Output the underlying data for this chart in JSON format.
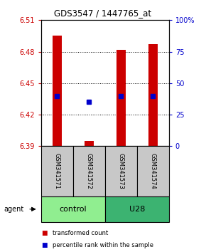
{
  "title": "GDS3547 / 1447765_at",
  "samples": [
    "GSM341571",
    "GSM341572",
    "GSM341573",
    "GSM341574"
  ],
  "groups": [
    {
      "name": "control",
      "indices": [
        0,
        1
      ],
      "color": "#90EE90"
    },
    {
      "name": "U28",
      "indices": [
        2,
        3
      ],
      "color": "#32CD32"
    }
  ],
  "ylim_left": [
    6.39,
    6.51
  ],
  "ylim_right": [
    0,
    100
  ],
  "yticks_left": [
    6.39,
    6.42,
    6.45,
    6.48,
    6.51
  ],
  "yticks_right": [
    0,
    25,
    50,
    75,
    100
  ],
  "ytick_labels_right": [
    "0",
    "25",
    "50",
    "75",
    "100%"
  ],
  "bar_bottoms": [
    6.39,
    6.39,
    6.39,
    6.39
  ],
  "bar_tops": [
    6.495,
    6.395,
    6.482,
    6.487
  ],
  "blue_percentile": [
    40,
    35,
    40,
    40
  ],
  "bar_color": "#CC0000",
  "blue_color": "#0000CC",
  "bar_width": 0.28,
  "blue_marker_size": 5,
  "left_axis_color": "#CC0000",
  "right_axis_color": "#0000CC",
  "sample_box_color": "#C8C8C8",
  "control_color": "#90EE90",
  "u28_color": "#3CB371",
  "legend_red_label": "transformed count",
  "legend_blue_label": "percentile rank within the sample",
  "agent_label": "agent"
}
